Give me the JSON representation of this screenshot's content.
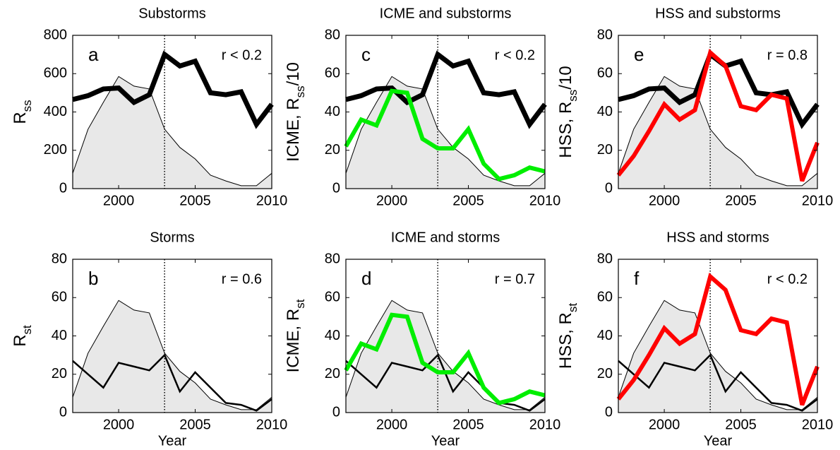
{
  "chart_data": [
    {
      "type": "line",
      "title": "Substorms",
      "panel": "a",
      "annotation": "r < 0.2",
      "ylabel": [
        "R",
        "ss"
      ],
      "x": [
        1997,
        1998,
        1999,
        2000,
        2001,
        2002,
        2003,
        2004,
        2005,
        2006,
        2007,
        2008,
        2009,
        2010
      ],
      "xlim": [
        1997,
        2010
      ],
      "xticks": [
        2000,
        2005,
        2010
      ],
      "ylim": [
        0,
        800
      ],
      "yticks": [
        0,
        200,
        400,
        600,
        800
      ],
      "vline": 2003,
      "series": [
        {
          "color": "#e8e8e8",
          "fill": true,
          "width": 1,
          "values": [
            80,
            310,
            450,
            585,
            535,
            520,
            310,
            215,
            155,
            70,
            40,
            15,
            15,
            80
          ]
        },
        {
          "color": "#000000",
          "width": 7,
          "values": [
            465,
            485,
            520,
            525,
            450,
            490,
            700,
            640,
            665,
            500,
            490,
            505,
            335,
            440
          ]
        }
      ]
    },
    {
      "type": "line",
      "title": "ICME and substorms",
      "panel": "c",
      "annotation": "r < 0.2",
      "ylabel": [
        "ICME,  R",
        "ss",
        "/10"
      ],
      "x": [
        1997,
        1998,
        1999,
        2000,
        2001,
        2002,
        2003,
        2004,
        2005,
        2006,
        2007,
        2008,
        2009,
        2010
      ],
      "xlim": [
        1997,
        2010
      ],
      "xticks": [
        2000,
        2005,
        2010
      ],
      "ylim": [
        0,
        80
      ],
      "yticks": [
        0,
        20,
        40,
        60,
        80
      ],
      "vline": 2003,
      "series": [
        {
          "color": "#e8e8e8",
          "fill": true,
          "width": 1,
          "values": [
            8,
            31,
            45,
            58.5,
            53.5,
            52,
            31,
            21.5,
            15.5,
            7,
            4,
            1.5,
            1.5,
            8
          ]
        },
        {
          "color": "#000000",
          "width": 7,
          "values": [
            46.5,
            48.5,
            52,
            52.5,
            45,
            49,
            70,
            64,
            66.5,
            50,
            49,
            50.5,
            33.5,
            44
          ]
        },
        {
          "color": "#00ee00",
          "width": 6,
          "values": [
            22,
            36,
            33,
            51,
            50,
            26,
            21,
            21,
            31,
            13,
            5,
            7,
            11,
            9
          ]
        }
      ]
    },
    {
      "type": "line",
      "title": "HSS and substorms",
      "panel": "e",
      "annotation": "r = 0.8",
      "ylabel": [
        "HSS,  R",
        "ss",
        "/10"
      ],
      "x": [
        1997,
        1998,
        1999,
        2000,
        2001,
        2002,
        2003,
        2004,
        2005,
        2006,
        2007,
        2008,
        2009,
        2010
      ],
      "xlim": [
        1997,
        2010
      ],
      "xticks": [
        2000,
        2005,
        2010
      ],
      "ylim": [
        0,
        80
      ],
      "yticks": [
        0,
        20,
        40,
        60,
        80
      ],
      "vline": 2003,
      "series": [
        {
          "color": "#e8e8e8",
          "fill": true,
          "width": 1,
          "values": [
            8,
            31,
            45,
            58.5,
            53.5,
            52,
            31,
            21.5,
            15.5,
            7,
            4,
            1.5,
            1.5,
            8
          ]
        },
        {
          "color": "#000000",
          "width": 7,
          "values": [
            46.5,
            48.5,
            52,
            52.5,
            45,
            49,
            70,
            64,
            66.5,
            50,
            49,
            50.5,
            33.5,
            44
          ]
        },
        {
          "color": "#ff0000",
          "width": 6,
          "values": [
            7,
            17,
            30,
            44,
            36,
            41,
            71,
            64,
            43,
            41,
            49,
            47,
            4,
            24
          ]
        }
      ]
    },
    {
      "type": "line",
      "title": "Storms",
      "panel": "b",
      "annotation": "r = 0.6",
      "ylabel": [
        "R",
        "st"
      ],
      "xlabel": "Year",
      "x": [
        1997,
        1998,
        1999,
        2000,
        2001,
        2002,
        2003,
        2004,
        2005,
        2006,
        2007,
        2008,
        2009,
        2010
      ],
      "xlim": [
        1997,
        2010
      ],
      "xticks": [
        2000,
        2005,
        2010
      ],
      "ylim": [
        0,
        80
      ],
      "yticks": [
        0,
        20,
        40,
        60,
        80
      ],
      "vline": 2003,
      "series": [
        {
          "color": "#e8e8e8",
          "fill": true,
          "width": 1,
          "values": [
            8,
            31,
            45,
            58.5,
            53.5,
            52,
            31,
            21.5,
            15.5,
            7,
            4,
            1.5,
            1.5,
            8
          ]
        },
        {
          "color": "#000000",
          "width": 2.5,
          "values": [
            27,
            20,
            13,
            26,
            24,
            22,
            30,
            11,
            21,
            13,
            5,
            4,
            1,
            7
          ]
        }
      ]
    },
    {
      "type": "line",
      "title": "ICME and storms",
      "panel": "d",
      "annotation": "r = 0.7",
      "ylabel": [
        "ICME,  R",
        "st"
      ],
      "xlabel": "Year",
      "x": [
        1997,
        1998,
        1999,
        2000,
        2001,
        2002,
        2003,
        2004,
        2005,
        2006,
        2007,
        2008,
        2009,
        2010
      ],
      "xlim": [
        1997,
        2010
      ],
      "xticks": [
        2000,
        2005,
        2010
      ],
      "ylim": [
        0,
        80
      ],
      "yticks": [
        0,
        20,
        40,
        60,
        80
      ],
      "vline": 2003,
      "series": [
        {
          "color": "#e8e8e8",
          "fill": true,
          "width": 1,
          "values": [
            8,
            31,
            45,
            58.5,
            53.5,
            52,
            31,
            21.5,
            15.5,
            7,
            4,
            1.5,
            1.5,
            8
          ]
        },
        {
          "color": "#000000",
          "width": 2.5,
          "values": [
            27,
            20,
            13,
            26,
            24,
            22,
            30,
            11,
            21,
            13,
            5,
            4,
            1,
            7
          ]
        },
        {
          "color": "#00ee00",
          "width": 6,
          "values": [
            22,
            36,
            33,
            51,
            50,
            26,
            21,
            21,
            31,
            13,
            5,
            7,
            11,
            9
          ]
        }
      ]
    },
    {
      "type": "line",
      "title": "HSS and storms",
      "panel": "f",
      "annotation": "r < 0.2",
      "ylabel": [
        "HSS,  R",
        "st"
      ],
      "xlabel": "Year",
      "x": [
        1997,
        1998,
        1999,
        2000,
        2001,
        2002,
        2003,
        2004,
        2005,
        2006,
        2007,
        2008,
        2009,
        2010
      ],
      "xlim": [
        1997,
        2010
      ],
      "xticks": [
        2000,
        2005,
        2010
      ],
      "ylim": [
        0,
        80
      ],
      "yticks": [
        0,
        20,
        40,
        60,
        80
      ],
      "vline": 2003,
      "series": [
        {
          "color": "#e8e8e8",
          "fill": true,
          "width": 1,
          "values": [
            8,
            31,
            45,
            58.5,
            53.5,
            52,
            31,
            21.5,
            15.5,
            7,
            4,
            1.5,
            1.5,
            8
          ]
        },
        {
          "color": "#000000",
          "width": 2.5,
          "values": [
            27,
            20,
            13,
            26,
            24,
            22,
            30,
            11,
            21,
            13,
            5,
            4,
            1,
            7
          ]
        },
        {
          "color": "#ff0000",
          "width": 6,
          "values": [
            7,
            17,
            30,
            44,
            36,
            41,
            71,
            64,
            43,
            41,
            49,
            47,
            4,
            24
          ]
        }
      ]
    }
  ]
}
